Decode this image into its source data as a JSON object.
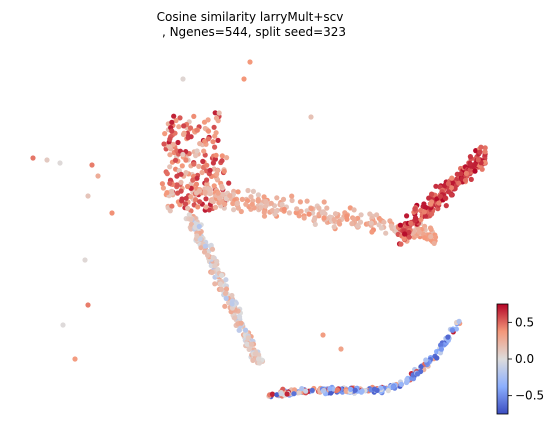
{
  "chart_data": {
    "type": "scatter",
    "title_line1": "Cosine similarity larryMult+scv",
    "title_line2": ", Ngenes=544, split seed=323",
    "xlabel": "",
    "ylabel": "",
    "axes_visible": false,
    "grid": false,
    "colormap": "coolwarm",
    "colorbar": {
      "min": -0.75,
      "max": 0.75,
      "ticks": [
        0.5,
        0.0,
        -0.5
      ],
      "tick_labels": [
        "0.5",
        "0.0",
        "−0.5"
      ],
      "placement": "bottom-right"
    },
    "embedding_structure": [
      {
        "region": "upper-left cluster",
        "value_range": [
          0.1,
          0.7
        ]
      },
      {
        "region": "upper band extending right",
        "value_range": [
          0.1,
          0.4
        ]
      },
      {
        "region": "right cluster",
        "value_range": [
          0.4,
          0.75
        ]
      },
      {
        "region": "descending stem",
        "value_range": [
          -0.2,
          0.3
        ]
      },
      {
        "region": "bottom arc",
        "value_range": [
          -0.7,
          0.7
        ]
      },
      {
        "region": "scattered outliers on left",
        "value_range": [
          0.0,
          0.5
        ]
      }
    ]
  }
}
